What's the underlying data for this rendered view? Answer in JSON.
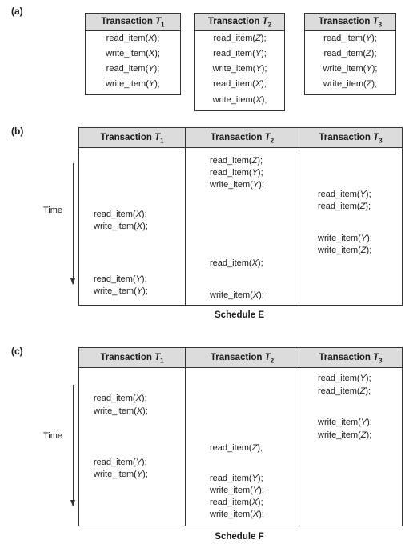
{
  "part_a": {
    "label": "(a)",
    "transactions": [
      {
        "name": "Transaction",
        "sym": "T",
        "sub": "1",
        "ops": [
          "read_item(X);",
          "write_item(X);",
          "read_item(Y);",
          "write_item(Y);"
        ]
      },
      {
        "name": "Transaction",
        "sym": "T",
        "sub": "2",
        "ops": [
          "read_item(Z);",
          "read_item(Y);",
          "write_item(Y);",
          "read_item(X);",
          "write_item(X);"
        ]
      },
      {
        "name": "Transaction",
        "sym": "T",
        "sub": "3",
        "ops": [
          "read_item(Y);",
          "read_item(Z);",
          "write_item(Y);",
          "write_item(Z);"
        ]
      }
    ]
  },
  "part_b": {
    "label": "(b)",
    "time_label": "Time",
    "caption": "Schedule E",
    "headers": [
      {
        "name": "Transaction",
        "sym": "T",
        "sub": "1"
      },
      {
        "name": "Transaction",
        "sym": "T",
        "sub": "2"
      },
      {
        "name": "Transaction",
        "sym": "T",
        "sub": "3"
      }
    ],
    "groups": [
      {
        "col": 1,
        "ops": [
          "read_item(Z);",
          "read_item(Y);",
          "write_item(Y);"
        ]
      },
      {
        "col": 2,
        "ops": [
          "read_item(Y);",
          "read_item(Z);"
        ]
      },
      {
        "col": 0,
        "ops": [
          "read_item(X);",
          "write_item(X);"
        ]
      },
      {
        "col": 2,
        "ops": [
          "write_item(Y);",
          "write_item(Z);"
        ]
      },
      {
        "col": 1,
        "ops": [
          "read_item(X);"
        ]
      },
      {
        "col": 0,
        "ops": [
          "read_item(Y);",
          "write_item(Y);"
        ]
      },
      {
        "col": 1,
        "ops": [
          "write_item(X);"
        ]
      }
    ]
  },
  "part_c": {
    "label": "(c)",
    "time_label": "Time",
    "caption": "Schedule F",
    "headers": [
      {
        "name": "Transaction",
        "sym": "T",
        "sub": "1"
      },
      {
        "name": "Transaction",
        "sym": "T",
        "sub": "2"
      },
      {
        "name": "Transaction",
        "sym": "T",
        "sub": "3"
      }
    ],
    "groups": [
      {
        "col": 2,
        "ops": [
          "read_item(Y);",
          "read_item(Z);"
        ]
      },
      {
        "col": 0,
        "ops": [
          "read_item(X);",
          "write_item(X);"
        ]
      },
      {
        "col": 2,
        "ops": [
          "write_item(Y);",
          "write_item(Z);"
        ]
      },
      {
        "col": 1,
        "ops": [
          "read_item(Z);"
        ]
      },
      {
        "col": 0,
        "ops": [
          "read_item(Y);",
          "write_item(Y);"
        ]
      },
      {
        "col": 1,
        "ops": [
          "read_item(Y);",
          "write_item(Y);",
          "read_item(X);",
          "write_item(X);"
        ]
      }
    ]
  }
}
